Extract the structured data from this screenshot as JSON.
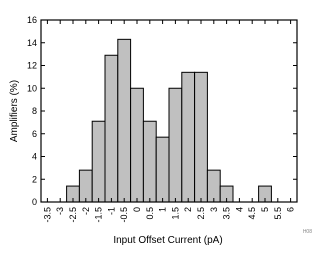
{
  "chart_data": {
    "type": "bar",
    "x_label": "Input Offset Current (pA)",
    "y_label": "Amplifiers (%)",
    "note": "H08",
    "categories": [
      "-3.5",
      "-3",
      "-2.5",
      "-2",
      "-1.5",
      "-1",
      "-0.5",
      "0",
      "0.5",
      "1",
      "1.5",
      "2",
      "2.5",
      "3",
      "3.5",
      "4",
      "4.5",
      "5",
      "5.5",
      "6"
    ],
    "values": [
      0,
      0,
      1.4,
      2.8,
      7.1,
      12.9,
      14.3,
      10,
      7.1,
      5.7,
      10,
      11.4,
      11.4,
      2.8,
      1.4,
      0,
      0,
      1.4,
      0,
      0
    ],
    "color": "#c0c0c0",
    "ylim": [
      0,
      16
    ],
    "yticks": [
      0,
      2,
      4,
      6,
      8,
      10,
      12,
      14,
      16
    ],
    "grid": false
  }
}
